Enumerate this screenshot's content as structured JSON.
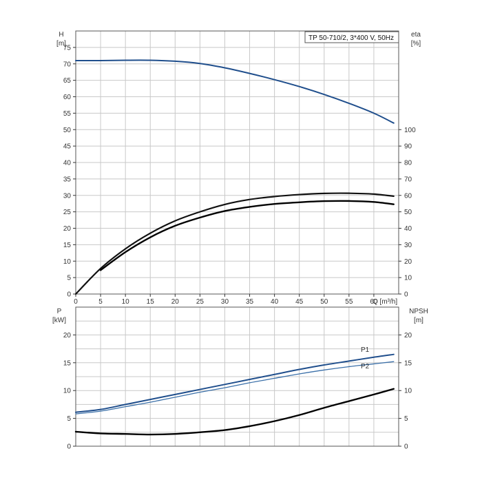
{
  "chart_data": [
    {
      "type": "line",
      "title": "TP 50-710/2, 3*400 V, 50Hz",
      "xlabel": "Q [m³/h]",
      "ylabel_left": [
        "H",
        "[m]"
      ],
      "ylabel_right": [
        "eta",
        "[%]"
      ],
      "xlim": [
        0,
        65
      ],
      "x_ticks": [
        0,
        5,
        10,
        15,
        20,
        25,
        30,
        35,
        40,
        45,
        50,
        55,
        60
      ],
      "ylim_left": [
        0,
        80
      ],
      "y_ticks_left": [
        0,
        5,
        10,
        15,
        20,
        25,
        30,
        35,
        40,
        45,
        50,
        55,
        60,
        65,
        70,
        75
      ],
      "ylim_right": [
        0,
        160
      ],
      "y_ticks_right": [
        0,
        10,
        20,
        30,
        40,
        50,
        60,
        70,
        80,
        90,
        100
      ],
      "grid": true,
      "series": [
        {
          "axis": "left",
          "color": "#1f4e8c",
          "x": [
            0,
            5,
            10,
            15,
            20,
            25,
            30,
            35,
            40,
            45,
            50,
            55,
            60,
            64
          ],
          "values": [
            71,
            71,
            71.1,
            71.1,
            70.8,
            70.1,
            68.8,
            67.1,
            65.2,
            63.1,
            60.7,
            58.0,
            55.0,
            52.0
          ]
        },
        {
          "axis": "right",
          "color": "#111111",
          "x": [
            0,
            5,
            10,
            15,
            20,
            25,
            30,
            35,
            40,
            45,
            50,
            55,
            60,
            64
          ],
          "values": [
            0,
            15.5,
            27.5,
            37,
            44.5,
            50,
            54.5,
            57.5,
            59.3,
            60.5,
            61.2,
            61.3,
            60.8,
            59.5
          ]
        },
        {
          "axis": "right",
          "color": "#000000",
          "x": [
            5,
            10,
            15,
            20,
            25,
            30,
            35,
            40,
            45,
            50,
            55,
            60,
            64
          ],
          "values": [
            14.5,
            25.5,
            34.5,
            41.5,
            46.5,
            50.5,
            53,
            54.8,
            55.8,
            56.5,
            56.6,
            56,
            54.6
          ]
        }
      ]
    },
    {
      "type": "line",
      "xlabel": "",
      "ylabel_left": [
        "P",
        "[kW]"
      ],
      "ylabel_right": [
        "NPSH",
        "[m]"
      ],
      "xlim": [
        0,
        65
      ],
      "ylim_left": [
        0,
        25
      ],
      "y_ticks_left": [
        0,
        5,
        10,
        15,
        20
      ],
      "ylim_right": [
        0,
        25
      ],
      "y_ticks_right": [
        0,
        5,
        10,
        15,
        20
      ],
      "grid": true,
      "series": [
        {
          "name": "P1",
          "axis": "left",
          "color": "#1f4e8c",
          "x": [
            0,
            5,
            10,
            15,
            20,
            25,
            30,
            35,
            40,
            45,
            50,
            55,
            60,
            64
          ],
          "values": [
            6.1,
            6.6,
            7.5,
            8.4,
            9.3,
            10.2,
            11.1,
            12.0,
            12.9,
            13.8,
            14.6,
            15.3,
            16.0,
            16.5
          ]
        },
        {
          "name": "P2",
          "axis": "left",
          "color": "#3a6fa8",
          "x": [
            0,
            5,
            10,
            15,
            20,
            25,
            30,
            35,
            40,
            45,
            50,
            55,
            60,
            64
          ],
          "values": [
            5.8,
            6.3,
            7.1,
            7.9,
            8.8,
            9.7,
            10.5,
            11.4,
            12.2,
            13.0,
            13.7,
            14.3,
            14.8,
            15.2
          ]
        },
        {
          "axis": "right",
          "color": "#000000",
          "x": [
            0,
            5,
            10,
            15,
            20,
            25,
            30,
            35,
            40,
            45,
            50,
            55,
            60,
            64
          ],
          "values": [
            2.6,
            2.3,
            2.2,
            2.1,
            2.2,
            2.5,
            2.9,
            3.6,
            4.5,
            5.6,
            6.9,
            8.1,
            9.3,
            10.3
          ]
        }
      ]
    }
  ]
}
